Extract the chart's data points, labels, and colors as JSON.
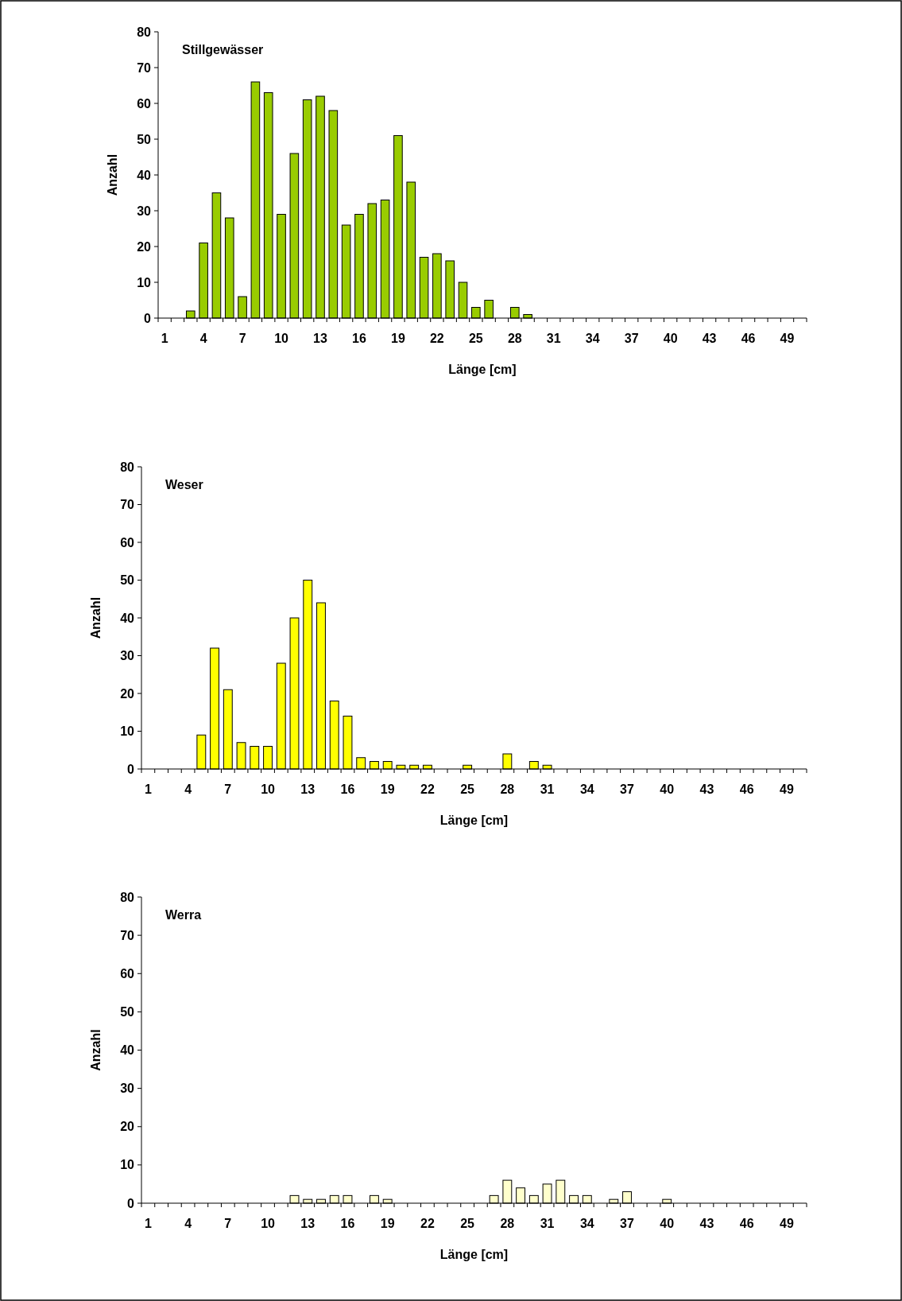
{
  "chart_data": [
    {
      "type": "bar",
      "title": "Stillgewässer",
      "xlabel": "Länge [cm]",
      "ylabel": "Anzahl",
      "color": "#99cc00",
      "ylim": [
        0,
        80
      ],
      "yticks": [
        0,
        10,
        20,
        30,
        40,
        50,
        60,
        70,
        80
      ],
      "grid": false,
      "categories": [
        "1",
        null,
        null,
        "4",
        null,
        null,
        "7",
        null,
        null,
        "10",
        null,
        null,
        "13",
        null,
        null,
        "16",
        null,
        null,
        "19",
        null,
        null,
        "22",
        null,
        null,
        "25",
        null,
        null,
        "28",
        null,
        null,
        "31",
        null,
        null,
        "34",
        null,
        null,
        "37",
        null,
        null,
        "40",
        null,
        null,
        "43",
        null,
        null,
        "46",
        null,
        null,
        "49",
        null
      ],
      "values": [
        0,
        0,
        2,
        21,
        35,
        28,
        6,
        66,
        63,
        29,
        46,
        61,
        62,
        58,
        26,
        29,
        32,
        33,
        51,
        38,
        17,
        18,
        16,
        10,
        3,
        5,
        0,
        3,
        1,
        0,
        0,
        0,
        0,
        0,
        0,
        0,
        0,
        0,
        0,
        0,
        0,
        0,
        0,
        0,
        0,
        0,
        0,
        0,
        0,
        0
      ]
    },
    {
      "type": "bar",
      "title": "Weser",
      "xlabel": "Länge [cm]",
      "ylabel": "Anzahl",
      "color": "#ffff00",
      "ylim": [
        0,
        80
      ],
      "yticks": [
        0,
        10,
        20,
        30,
        40,
        50,
        60,
        70,
        80
      ],
      "grid": false,
      "categories": [
        "1",
        null,
        null,
        "4",
        null,
        null,
        "7",
        null,
        null,
        "10",
        null,
        null,
        "13",
        null,
        null,
        "16",
        null,
        null,
        "19",
        null,
        null,
        "22",
        null,
        null,
        "25",
        null,
        null,
        "28",
        null,
        null,
        "31",
        null,
        null,
        "34",
        null,
        null,
        "37",
        null,
        null,
        "40",
        null,
        null,
        "43",
        null,
        null,
        "46",
        null,
        null,
        "49",
        null
      ],
      "values": [
        0,
        0,
        0,
        0,
        9,
        32,
        21,
        7,
        6,
        6,
        28,
        40,
        50,
        44,
        18,
        14,
        3,
        2,
        2,
        1,
        1,
        1,
        0,
        0,
        1,
        0,
        0,
        4,
        0,
        2,
        1,
        0,
        0,
        0,
        0,
        0,
        0,
        0,
        0,
        0,
        0,
        0,
        0,
        0,
        0,
        0,
        0,
        0,
        0,
        0
      ]
    },
    {
      "type": "bar",
      "title": "Werra",
      "xlabel": "Länge [cm]",
      "ylabel": "Anzahl",
      "color": "#ffffcc",
      "ylim": [
        0,
        80
      ],
      "yticks": [
        0,
        10,
        20,
        30,
        40,
        50,
        60,
        70,
        80
      ],
      "grid": false,
      "categories": [
        "1",
        null,
        null,
        "4",
        null,
        null,
        "7",
        null,
        null,
        "10",
        null,
        null,
        "13",
        null,
        null,
        "16",
        null,
        null,
        "19",
        null,
        null,
        "22",
        null,
        null,
        "25",
        null,
        null,
        "28",
        null,
        null,
        "31",
        null,
        null,
        "34",
        null,
        null,
        "37",
        null,
        null,
        "40",
        null,
        null,
        "43",
        null,
        null,
        "46",
        null,
        null,
        "49",
        null
      ],
      "values": [
        0,
        0,
        0,
        0,
        0,
        0,
        0,
        0,
        0,
        0,
        0,
        2,
        1,
        1,
        2,
        2,
        0,
        2,
        1,
        0,
        0,
        0,
        0,
        0,
        0,
        0,
        2,
        6,
        4,
        2,
        5,
        6,
        2,
        2,
        0,
        1,
        3,
        0,
        0,
        1,
        0,
        0,
        0,
        0,
        0,
        0,
        0,
        0,
        0,
        0
      ]
    }
  ]
}
